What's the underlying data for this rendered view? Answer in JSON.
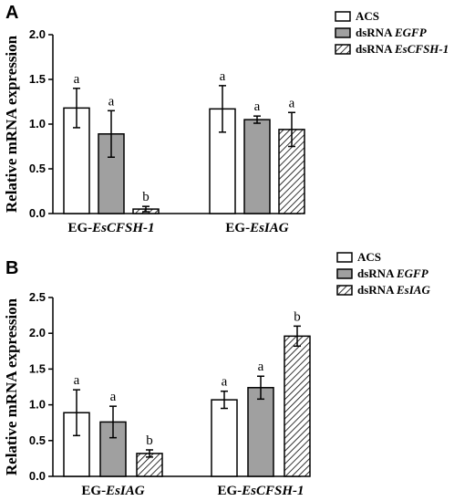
{
  "chart_data": [
    {
      "type": "bar",
      "panel": "A",
      "ylabel": "Relative mRNA expression",
      "ylim": [
        0,
        2.0
      ],
      "yticks": [
        "0.0",
        "0.5",
        "1.0",
        "1.5",
        "2.0"
      ],
      "legend_placement": "top-right",
      "categories": [
        {
          "prefix": "EG-",
          "gene": "EsCFSH-1"
        },
        {
          "prefix": "EG-",
          "gene": "EsIAG"
        }
      ],
      "series": [
        {
          "name_plain": "ACS",
          "name_gene": "",
          "fill": "white",
          "values": [
            1.18,
            1.17
          ],
          "errors": [
            0.22,
            0.26
          ],
          "sig": [
            "a",
            "a"
          ]
        },
        {
          "name_plain": "dsRNA ",
          "name_gene": "EGFP",
          "fill": "gray",
          "values": [
            0.89,
            1.05
          ],
          "errors": [
            0.26,
            0.04
          ],
          "sig": [
            "a",
            "a"
          ]
        },
        {
          "name_plain": "dsRNA ",
          "name_gene": "EsCFSH-1",
          "fill": "hatch",
          "values": [
            0.05,
            0.94
          ],
          "errors": [
            0.03,
            0.19
          ],
          "sig": [
            "b",
            "a"
          ]
        }
      ]
    },
    {
      "type": "bar",
      "panel": "B",
      "ylabel": "Relative mRNA expression",
      "ylim": [
        0,
        2.5
      ],
      "yticks": [
        "0.0",
        "0.5",
        "1.0",
        "1.5",
        "2.0",
        "2.5"
      ],
      "legend_placement": "top-right",
      "categories": [
        {
          "prefix": "EG-",
          "gene": "EsIAG"
        },
        {
          "prefix": "EG-",
          "gene": "EsCFSH-1"
        }
      ],
      "series": [
        {
          "name_plain": "ACS",
          "name_gene": "",
          "fill": "white",
          "values": [
            0.89,
            1.07
          ],
          "errors": [
            0.32,
            0.12
          ],
          "sig": [
            "a",
            "a"
          ]
        },
        {
          "name_plain": "dsRNA ",
          "name_gene": "EGFP",
          "fill": "gray",
          "values": [
            0.76,
            1.24
          ],
          "errors": [
            0.22,
            0.16
          ],
          "sig": [
            "a",
            "a"
          ]
        },
        {
          "name_plain": "dsRNA ",
          "name_gene": "EsIAG",
          "fill": "hatch",
          "values": [
            0.32,
            1.96
          ],
          "errors": [
            0.05,
            0.14
          ],
          "sig": [
            "b",
            "b"
          ]
        }
      ]
    }
  ],
  "colors": {
    "gray": "#a0a0a0",
    "stroke": "#000000",
    "background": "#ffffff"
  }
}
